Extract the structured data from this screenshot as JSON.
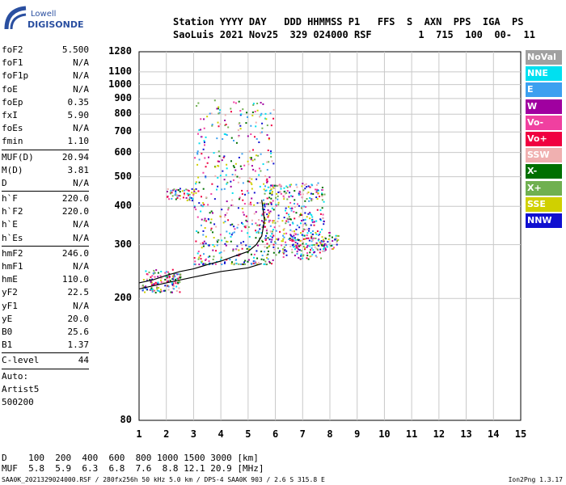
{
  "logo": {
    "company": "Lowell",
    "product": "DIGISONDE"
  },
  "header": {
    "line1": "Station YYYY DAY   DDD HHMMSS P1   FFS  S  AXN  PPS  IGA  PS",
    "line2": "SaoLuis 2021 Nov25  329 024000 RSF        1  715  100  00-  11"
  },
  "params": [
    {
      "k": "foF2",
      "v": "5.500"
    },
    {
      "k": "foF1",
      "v": "N/A"
    },
    {
      "k": "foF1p",
      "v": "N/A"
    },
    {
      "k": "foE",
      "v": "N/A"
    },
    {
      "k": "foEp",
      "v": "0.35"
    },
    {
      "k": "fxI",
      "v": "5.90"
    },
    {
      "k": "foEs",
      "v": "N/A"
    },
    {
      "k": "fmin",
      "v": "1.10"
    },
    {
      "k": "MUF(D)",
      "v": "20.94"
    },
    {
      "k": "M(D)",
      "v": "3.81"
    },
    {
      "k": "D",
      "v": "N/A"
    },
    {
      "k": "h`F",
      "v": "220.0"
    },
    {
      "k": "h`F2",
      "v": "220.0"
    },
    {
      "k": "h`E",
      "v": "N/A"
    },
    {
      "k": "h`Es",
      "v": "N/A"
    },
    {
      "k": "hmF2",
      "v": "246.0"
    },
    {
      "k": "hmF1",
      "v": "N/A"
    },
    {
      "k": "hmE",
      "v": "110.0"
    },
    {
      "k": "yF2",
      "v": "22.5"
    },
    {
      "k": "yF1",
      "v": "N/A"
    },
    {
      "k": "yE",
      "v": "20.0"
    },
    {
      "k": "B0",
      "v": "25.6"
    },
    {
      "k": "B1",
      "v": "1.37"
    },
    {
      "k": "C-level",
      "v": "44"
    }
  ],
  "auto": {
    "l1": "Auto:",
    "l2": "Artist5",
    "l3": "500200"
  },
  "legend": [
    {
      "label": "NoVal",
      "color": "#a0a0a0"
    },
    {
      "label": "NNE",
      "color": "#00e0f0"
    },
    {
      "label": "E",
      "color": "#3ca0f0"
    },
    {
      "label": "W",
      "color": "#a000a0"
    },
    {
      "label": "Vo-",
      "color": "#f040a0"
    },
    {
      "label": "Vo+",
      "color": "#f00040"
    },
    {
      "label": "SSW",
      "color": "#f0b0b0"
    },
    {
      "label": "X-",
      "color": "#007000"
    },
    {
      "label": "X+",
      "color": "#70b050"
    },
    {
      "label": "SSE",
      "color": "#d0d000"
    },
    {
      "label": "NNW",
      "color": "#1010d0"
    }
  ],
  "chart_data": {
    "type": "scatter",
    "xlim": [
      1,
      15
    ],
    "ylim": [
      80,
      1280
    ],
    "y_scale": "log",
    "grid": true,
    "x_ticks": [
      "1",
      "2",
      "3",
      "4",
      "5",
      "6",
      "7",
      "8",
      "9",
      "10",
      "11",
      "12",
      "13",
      "14",
      "15"
    ],
    "y_ticks": [
      "1280",
      "1100",
      "1000",
      "900",
      "800",
      "700",
      "600",
      "500",
      "400",
      "300",
      "200",
      "80"
    ],
    "y_tick_values": [
      1280,
      1100,
      1000,
      900,
      800,
      700,
      600,
      500,
      400,
      300,
      200,
      80
    ],
    "trace_f2_o": [
      [
        1.0,
        225
      ],
      [
        1.5,
        230
      ],
      [
        2.0,
        238
      ],
      [
        2.5,
        245
      ],
      [
        3.0,
        250
      ],
      [
        3.5,
        258
      ],
      [
        4.0,
        265
      ],
      [
        4.5,
        275
      ],
      [
        5.0,
        285
      ],
      [
        5.3,
        300
      ],
      [
        5.5,
        320
      ],
      [
        5.6,
        360
      ],
      [
        5.5,
        420
      ]
    ],
    "trace_f2_x": [
      [
        1.0,
        215
      ],
      [
        2.0,
        225
      ],
      [
        3.0,
        235
      ],
      [
        4.0,
        245
      ],
      [
        5.0,
        252
      ],
      [
        5.5,
        260
      ]
    ],
    "echo_clusters": [
      {
        "xmin": 1.1,
        "xmax": 2.5,
        "ymin": 210,
        "ymax": 250,
        "n": 140
      },
      {
        "xmin": 2.0,
        "xmax": 3.0,
        "ymin": 420,
        "ymax": 460,
        "n": 60
      },
      {
        "xmin": 3.0,
        "xmax": 6.0,
        "ymin": 260,
        "ymax": 900,
        "n": 520
      },
      {
        "xmin": 5.5,
        "xmax": 7.8,
        "ymin": 270,
        "ymax": 480,
        "n": 380
      },
      {
        "xmin": 6.5,
        "xmax": 8.3,
        "ymin": 290,
        "ymax": 330,
        "n": 100
      }
    ]
  },
  "bottom": {
    "line1": "D    100  200  400  600  800 1000 1500 3000 [km]",
    "line2": "MUF  5.8  5.9  6.3  6.8  7.6  8.8 12.1 20.9 [MHz]"
  },
  "footer": {
    "left": "SAA0K_2021329024000.RSF / 280fx256h 50 kHz 5.0 km / DPS-4 SAA0K 903 / 2.6 S 315.8 E",
    "right": "Ion2Png 1.3.17"
  }
}
